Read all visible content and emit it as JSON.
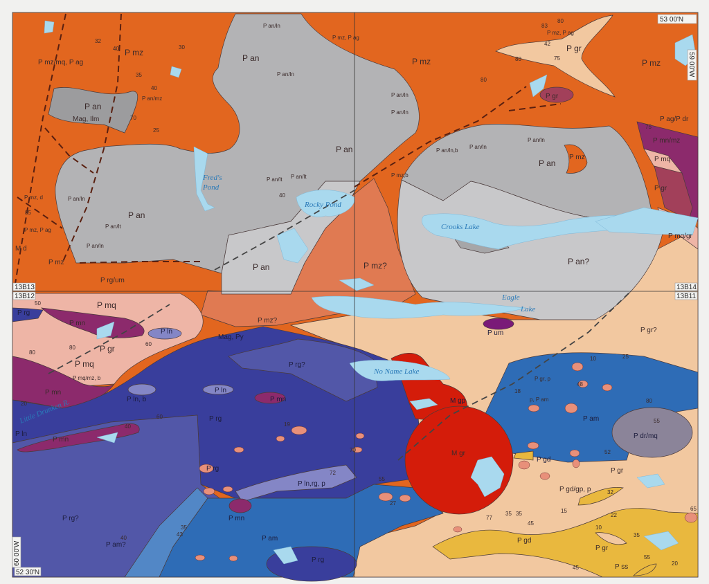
{
  "map": {
    "coords": {
      "top_right_lat": "53 00'N",
      "right_lon": "59 00'W",
      "left_lon": "60 00'W",
      "bottom_left_lat": "52 30'N"
    },
    "sheets": [
      "13B13",
      "13B12",
      "13B14",
      "13B11"
    ],
    "lakes": [
      "Fred's",
      "Pond",
      "Rocky Pond",
      "Crooks Lake",
      "Eagle",
      "Lake",
      "No Name Lake",
      "Little Drunken R."
    ],
    "labels": [
      "P mz/mq, P ag",
      "P mz",
      "P an",
      "Mag, Ilm",
      "P an/mz",
      "P an",
      "P an/ln",
      "P an/ln",
      "P mz, P ag",
      "P an",
      "P an/lt",
      "P an/lt",
      "P mz, d",
      "P mz, P ag",
      "M d",
      "P mz",
      "P an",
      "P an/ln",
      "P an/lt",
      "P an/ln",
      "P an",
      "P rg/um",
      "P mz, P ag",
      "P gr",
      "P mz",
      "P mz",
      "P gr",
      "P an/ln",
      "P an/ln",
      "P an/ln,b",
      "P an/ln",
      "P an",
      "P mz",
      "P an/ln",
      "P mz,b",
      "P mz?",
      "P an?",
      "P ag/P dr",
      "P mn/mz",
      "P mq",
      "P gr",
      "P mq/gr",
      "P mq",
      "P rg",
      "P mn",
      "P gr",
      "P ln",
      "P mq",
      "P mq/mz, b",
      "P mn",
      "P ln, b",
      "P ln",
      "P mz?",
      "Mag, Py",
      "P rg?",
      "P ln",
      "P mn",
      "P rg",
      "P mn",
      "P rg",
      "P ln,rg, p",
      "P mn",
      "P rg?",
      "P am?",
      "P am",
      "P rg",
      "P um",
      "P gr?",
      "M gp",
      "M gr",
      "P am",
      "P dr/mq",
      "P gd",
      "P gr",
      "P gd/gp, p",
      "P gd",
      "P gr",
      "P ss",
      "p, P am",
      "P gr, p"
    ],
    "dips": [
      "40",
      "30",
      "35",
      "40",
      "70",
      "25",
      "32",
      "85",
      "40",
      "83",
      "80",
      "42",
      "80",
      "75",
      "80",
      "75",
      "50",
      "80",
      "80",
      "60",
      "20",
      "40",
      "60",
      "19",
      "70",
      "55",
      "72",
      "35",
      "43",
      "40",
      "10",
      "25",
      "48",
      "18",
      "80",
      "55",
      "52",
      "32",
      "77",
      "35",
      "35",
      "45",
      "15",
      "22",
      "10",
      "35",
      "45",
      "55",
      "20",
      "65",
      "27"
    ]
  },
  "legend_units_colors": {
    "P_mz": "#e2661f",
    "P_an": "#b3b3b5",
    "P_an_light": "#c8c8ca",
    "P_mz_q": "#e07a52",
    "P_gr": "#f2c8a0",
    "P_mq": "#eeb5a6",
    "P_mn": "#8c2a6c",
    "P_rg": "#393e9c",
    "P_rg_q": "#5257a8",
    "P_am": "#2e6cb6",
    "P_am_q": "#5287c6",
    "P_ln": "#8486c6",
    "M_gr": "#d41c0a",
    "P_gd": "#e9b83e",
    "P_dr_mq": "#8b8499",
    "p": "#e8907a",
    "water": "#a9d9ee"
  }
}
